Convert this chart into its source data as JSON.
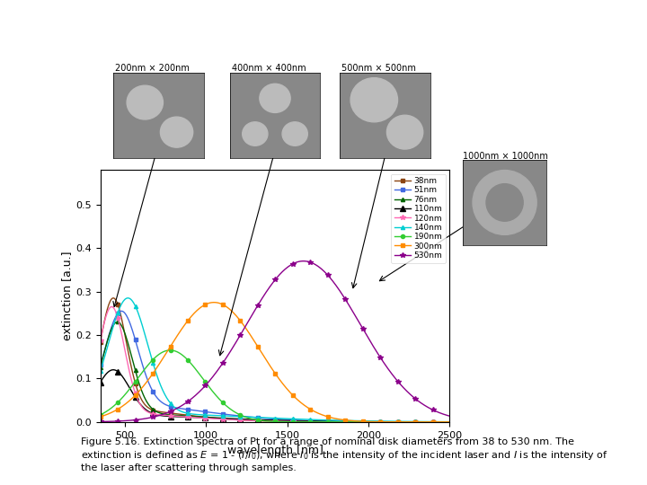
{
  "title": "",
  "xlabel": "wavelength [nm]",
  "ylabel": "extinction [a.u.]",
  "xlim": [
    350,
    2500
  ],
  "ylim": [
    0,
    0.58
  ],
  "yticks": [
    0.0,
    0.1,
    0.2,
    0.3,
    0.4,
    0.5
  ],
  "xticks": [
    500,
    1000,
    1500,
    2000,
    2500
  ],
  "background": "#ffffff",
  "series": [
    {
      "label": "38nm",
      "color": "#8B4513",
      "marker": "s",
      "markersize": 3,
      "peak_wl": 430,
      "peak_ext": 0.255
    },
    {
      "label": "51nm",
      "color": "#4169E1",
      "marker": "s",
      "markersize": 3,
      "peak_wl": 480,
      "peak_ext": 0.215
    },
    {
      "label": "76nm",
      "color": "#006400",
      "marker": "^",
      "markersize": 3,
      "peak_wl": 455,
      "peak_ext": 0.21
    },
    {
      "label": "110nm",
      "color": "#000000",
      "marker": "^",
      "markersize": 5,
      "peak_wl": 430,
      "peak_ext": 0.105
    },
    {
      "label": "120nm",
      "color": "#FF69B4",
      "marker": "*",
      "markersize": 4,
      "peak_wl": 420,
      "peak_ext": 0.245
    },
    {
      "label": "140nm",
      "color": "#00CED1",
      "marker": "^",
      "markersize": 3,
      "peak_wl": 520,
      "peak_ext": 0.265
    },
    {
      "label": "190nm",
      "color": "#32CD32",
      "marker": "o",
      "markersize": 3,
      "peak_wl": 780,
      "peak_ext": 0.165
    },
    {
      "label": "300nm",
      "color": "#FF8C00",
      "marker": "s",
      "markersize": 3,
      "peak_wl": 1050,
      "peak_ext": 0.275
    },
    {
      "label": "530nm",
      "color": "#8B008B",
      "marker": "*",
      "markersize": 4,
      "peak_wl": 1600,
      "peak_ext": 0.37
    }
  ],
  "caption_line1": "Figure 5.16. Extinction spectra of Pt for a range of nominal disk diameters from 38 to 530 nm. The",
  "caption_line2": "extinction is defined as $E$ = 1 - ($I$/$I_{0}$), where $I_{0}$ is the intensity of the incident laser and $I$ is the intensity of",
  "caption_line3": "the laser after scattering through samples."
}
